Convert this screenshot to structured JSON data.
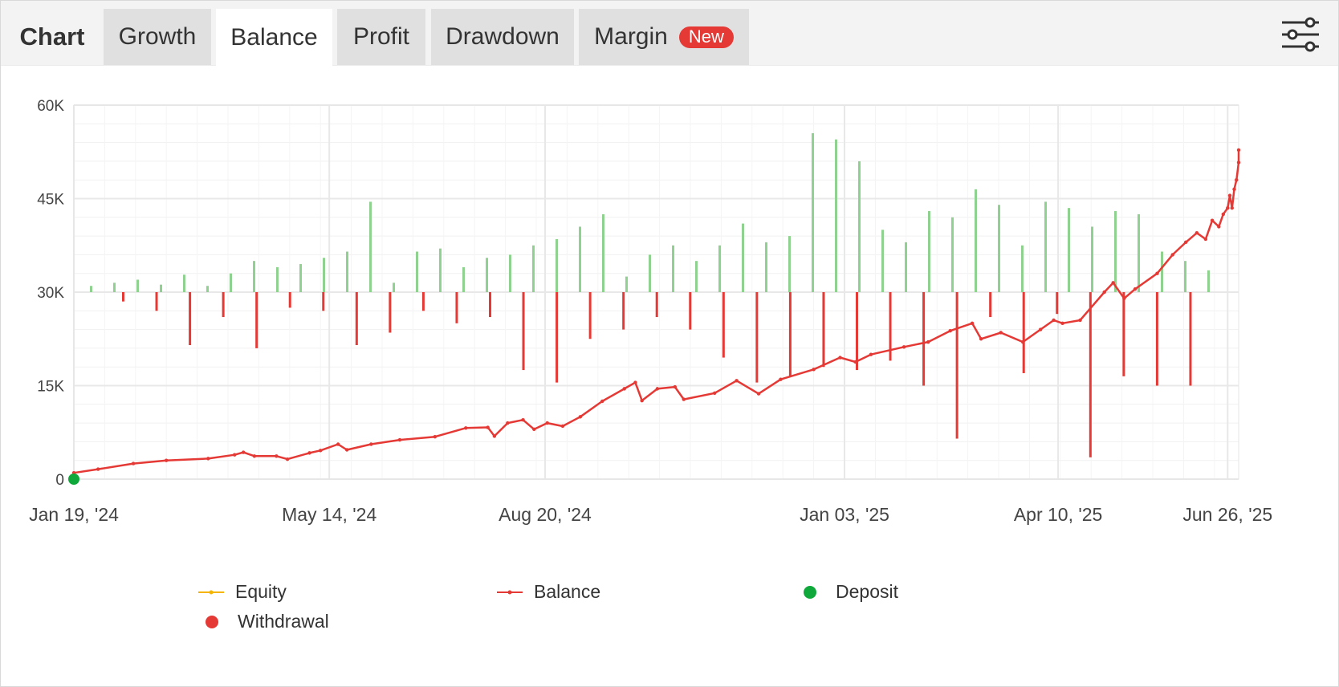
{
  "tabs": {
    "title": "Chart",
    "items": [
      {
        "label": "Growth",
        "active": false
      },
      {
        "label": "Balance",
        "active": true
      },
      {
        "label": "Profit",
        "active": false
      },
      {
        "label": "Drawdown",
        "active": false
      },
      {
        "label": "Margin",
        "active": false,
        "badge": "New"
      }
    ],
    "settings_icon": "sliders-icon"
  },
  "colors": {
    "balance": "#e53935",
    "equity": "#f5b400",
    "deposit": "#0fa83a",
    "withdrawal": "#e53935",
    "up_bar": "#8fd18f",
    "down_bar": "#e53935",
    "grid": "#e8e8e8",
    "badge": "#e53935"
  },
  "legend": [
    {
      "label": "Equity",
      "marker": "line",
      "color": "#f5b400"
    },
    {
      "label": "Balance",
      "marker": "line",
      "color": "#e53935"
    },
    {
      "label": "Deposit",
      "marker": "dot",
      "color": "#0fa83a"
    },
    {
      "label": "Withdrawal",
      "marker": "dot",
      "color": "#e53935"
    }
  ],
  "chart_data": {
    "type": "line",
    "y_ticks": [
      "0",
      "15K",
      "30K",
      "45K",
      "60K"
    ],
    "ylim": [
      0,
      60000
    ],
    "x_ticks": [
      {
        "date": "2024-01-19",
        "label": "Jan 19, '24"
      },
      {
        "date": "2024-05-14",
        "label": "May 14, '24"
      },
      {
        "date": "2024-08-20",
        "label": "Aug 20, '24"
      },
      {
        "date": "2025-01-03",
        "label": "Jan 03, '25"
      },
      {
        "date": "2025-04-10",
        "label": "Apr 10, '25"
      },
      {
        "date": "2025-06-26",
        "label": "Jun 26, '25"
      }
    ],
    "xlim": [
      "2024-01-19",
      "2025-07-01"
    ],
    "grid": true,
    "baseline": 30000,
    "series": [
      {
        "name": "Balance",
        "points": [
          [
            "2024-01-19",
            1000
          ],
          [
            "2024-01-30",
            1600
          ],
          [
            "2024-02-15",
            2500
          ],
          [
            "2024-03-01",
            3000
          ],
          [
            "2024-03-20",
            3300
          ],
          [
            "2024-04-01",
            3900
          ],
          [
            "2024-04-05",
            4300
          ],
          [
            "2024-04-10",
            3700
          ],
          [
            "2024-04-20",
            3700
          ],
          [
            "2024-04-25",
            3200
          ],
          [
            "2024-05-05",
            4200
          ],
          [
            "2024-05-10",
            4600
          ],
          [
            "2024-05-18",
            5600
          ],
          [
            "2024-05-22",
            4700
          ],
          [
            "2024-06-02",
            5600
          ],
          [
            "2024-06-15",
            6300
          ],
          [
            "2024-07-01",
            6800
          ],
          [
            "2024-07-15",
            8200
          ],
          [
            "2024-07-25",
            8300
          ],
          [
            "2024-07-28",
            6900
          ],
          [
            "2024-08-03",
            9000
          ],
          [
            "2024-08-10",
            9500
          ],
          [
            "2024-08-15",
            8000
          ],
          [
            "2024-08-21",
            9000
          ],
          [
            "2024-08-28",
            8500
          ],
          [
            "2024-09-05",
            10000
          ],
          [
            "2024-09-15",
            12500
          ],
          [
            "2024-09-25",
            14500
          ],
          [
            "2024-09-30",
            15500
          ],
          [
            "2024-10-03",
            12600
          ],
          [
            "2024-10-10",
            14500
          ],
          [
            "2024-10-18",
            14800
          ],
          [
            "2024-10-22",
            12800
          ],
          [
            "2024-11-05",
            13800
          ],
          [
            "2024-11-15",
            15800
          ],
          [
            "2024-11-25",
            13700
          ],
          [
            "2024-12-05",
            16000
          ],
          [
            "2024-12-20",
            17600
          ],
          [
            "2025-01-01",
            19500
          ],
          [
            "2025-01-08",
            18800
          ],
          [
            "2025-01-15",
            20000
          ],
          [
            "2025-01-30",
            21200
          ],
          [
            "2025-02-10",
            22000
          ],
          [
            "2025-02-20",
            23800
          ],
          [
            "2025-03-02",
            25000
          ],
          [
            "2025-03-06",
            22500
          ],
          [
            "2025-03-15",
            23500
          ],
          [
            "2025-03-25",
            22000
          ],
          [
            "2025-04-02",
            24000
          ],
          [
            "2025-04-08",
            25500
          ],
          [
            "2025-04-12",
            25000
          ],
          [
            "2025-04-20",
            25500
          ],
          [
            "2025-05-01",
            30000
          ],
          [
            "2025-05-05",
            31500
          ],
          [
            "2025-05-10",
            29000
          ],
          [
            "2025-05-15",
            30500
          ],
          [
            "2025-05-25",
            33000
          ],
          [
            "2025-06-01",
            36000
          ],
          [
            "2025-06-07",
            38000
          ],
          [
            "2025-06-12",
            39500
          ],
          [
            "2025-06-16",
            38500
          ],
          [
            "2025-06-19",
            41500
          ],
          [
            "2025-06-22",
            40500
          ],
          [
            "2025-06-24",
            42500
          ],
          [
            "2025-06-26",
            43500
          ],
          [
            "2025-06-27",
            45500
          ],
          [
            "2025-06-28",
            43500
          ],
          [
            "2025-06-29",
            46500
          ],
          [
            "2025-06-30",
            48000
          ],
          [
            "2025-07-01",
            50800
          ],
          [
            "2025-07-01",
            52800
          ]
        ]
      }
    ],
    "deposits": [
      {
        "date": "2024-01-19",
        "value": 0
      }
    ],
    "daily_bars_approx": {
      "up_values": [
        31000,
        31500,
        32000,
        31200,
        32800,
        31000,
        33000,
        35000,
        34000,
        34500,
        35500,
        36500,
        44500,
        31500,
        36500,
        37000,
        34000,
        35500,
        36000,
        37500,
        38500,
        40500,
        42500,
        32500,
        36000,
        37500,
        35000,
        37500,
        41000,
        38000,
        39000,
        55500,
        54500,
        51000,
        40000,
        38000,
        43000,
        42000,
        46500,
        44000,
        37500,
        44500,
        43500,
        40500,
        43000,
        42500,
        36500,
        35000,
        33500
      ],
      "down_values": [
        28500,
        27000,
        21500,
        26000,
        21000,
        27500,
        27000,
        21500,
        23500,
        27000,
        25000,
        26000,
        17500,
        15500,
        22500,
        24000,
        26000,
        24000,
        19500,
        15500,
        16500,
        18000,
        17500,
        19000,
        15000,
        6500,
        26000,
        17000,
        26500,
        3500,
        16500,
        15000,
        15000
      ]
    }
  }
}
